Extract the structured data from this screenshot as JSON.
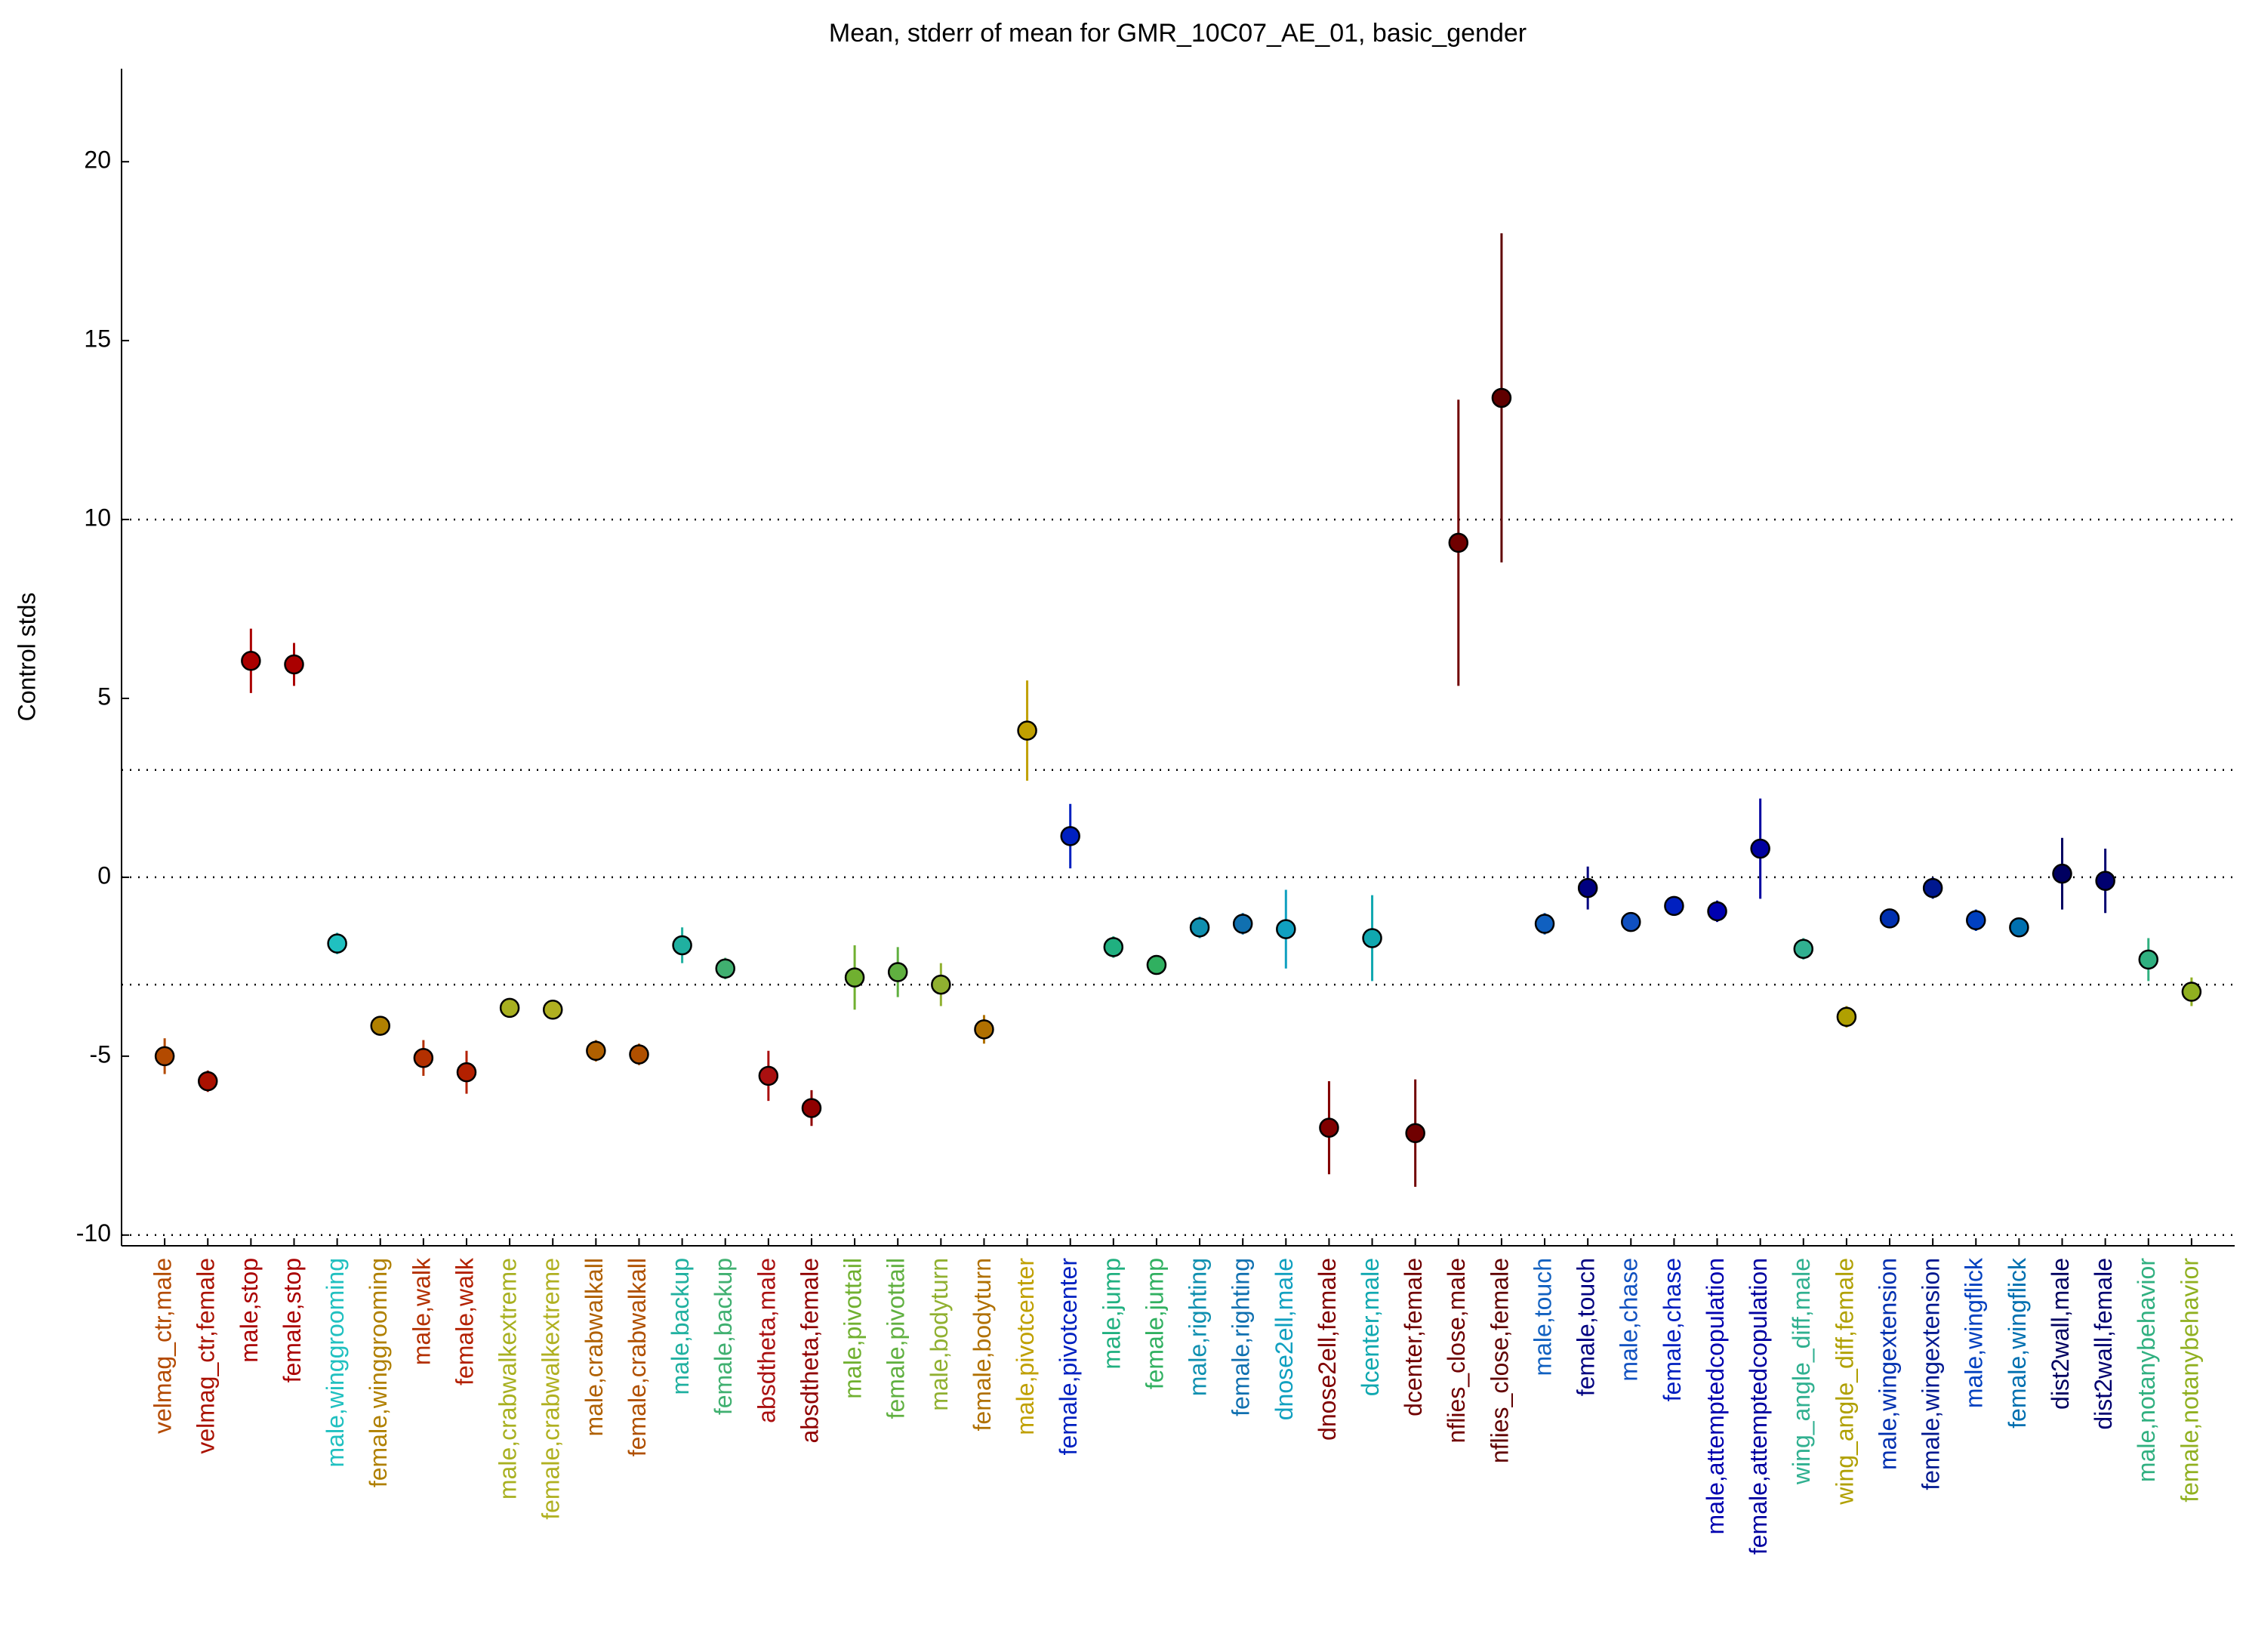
{
  "chart_data": {
    "type": "errorbar",
    "title": "Mean, stderr of mean for GMR_10C07_AE_01, basic_gender",
    "ylabel": "Control stds",
    "categories": [
      "velmag_ctr,male",
      "velmag_ctr,female",
      "male,stop",
      "female,stop",
      "male,winggrooming",
      "female,winggrooming",
      "male,walk",
      "female,walk",
      "male,crabwalkextreme",
      "female,crabwalkextreme",
      "male,crabwalkall",
      "female,crabwalkall",
      "male,backup",
      "female,backup",
      "absdtheta,male",
      "absdtheta,female",
      "male,pivottail",
      "female,pivottail",
      "male,bodyturn",
      "female,bodyturn",
      "male,pivotcenter",
      "female,pivotcenter",
      "male,jump",
      "female,jump",
      "male,righting",
      "female,righting",
      "dnose2ell,male",
      "dnose2ell,female",
      "dcenter,male",
      "dcenter,female",
      "nflies_close,male",
      "nflies_close,female",
      "male,touch",
      "female,touch",
      "male,chase",
      "female,chase",
      "male,attemptedcopulation",
      "female,attemptedcopulation",
      "wing_angle_diff,male",
      "wing_angle_diff,female",
      "male,wingextension",
      "female,wingextension",
      "male,wingflick",
      "female,wingflick",
      "dist2wall,male",
      "dist2wall,female",
      "male,notanybehavior",
      "female,notanybehavior"
    ],
    "values": [
      -5.0,
      -5.7,
      6.05,
      5.95,
      -1.85,
      -4.15,
      -5.05,
      -5.45,
      -3.65,
      -3.7,
      -4.85,
      -4.95,
      -1.9,
      -2.55,
      -5.55,
      -6.45,
      -2.8,
      -2.65,
      -3.0,
      -4.25,
      4.1,
      1.15,
      -1.95,
      -2.45,
      -1.4,
      -1.3,
      -1.45,
      -7.0,
      -1.7,
      -7.15,
      9.35,
      13.4,
      -1.3,
      -0.3,
      -1.25,
      -0.8,
      -0.95,
      0.8,
      -2.0,
      -3.9,
      -1.15,
      -0.3,
      -1.2,
      -1.4,
      0.1,
      -0.1,
      -2.3,
      -3.2
    ],
    "errors": [
      0.5,
      0.3,
      0.9,
      0.6,
      0.3,
      0.2,
      0.5,
      0.6,
      0.2,
      0.2,
      0.3,
      0.3,
      0.5,
      0.3,
      0.7,
      0.5,
      0.9,
      0.7,
      0.6,
      0.4,
      1.4,
      0.9,
      0.3,
      0.15,
      0.3,
      0.3,
      1.1,
      1.3,
      1.2,
      1.5,
      4.0,
      4.6,
      0.3,
      0.6,
      0.2,
      0.15,
      0.3,
      1.4,
      0.3,
      0.3,
      0.2,
      0.3,
      0.3,
      0.2,
      1.0,
      0.9,
      0.6,
      0.4
    ],
    "colors": [
      "#b34a00",
      "#aa1100",
      "#aa0000",
      "#aa0000",
      "#20c0c0",
      "#b08000",
      "#b33000",
      "#b32000",
      "#a8b020",
      "#b0b020",
      "#b06000",
      "#b05000",
      "#20b0a0",
      "#40b070",
      "#aa1010",
      "#900000",
      "#70b030",
      "#60b040",
      "#90b030",
      "#b07000",
      "#c0a000",
      "#0020c0",
      "#20b080",
      "#30b060",
      "#1090b0",
      "#1070b0",
      "#10a0c0",
      "#800000",
      "#10a8b0",
      "#700000",
      "#700000",
      "#600000",
      "#1060c0",
      "#000080",
      "#1050c0",
      "#0020c0",
      "#0000b0",
      "#0000a0",
      "#30b090",
      "#b0a000",
      "#0030b0",
      "#001890",
      "#0040c0",
      "#0070b0",
      "#000060",
      "#000070",
      "#30b080",
      "#90b020"
    ],
    "ylim": [
      -10.3,
      22.6
    ],
    "yticks": [
      -10,
      -5,
      0,
      5,
      10,
      15,
      20
    ],
    "reference_lines": [
      10,
      3,
      0,
      -3,
      -10
    ],
    "grid": false
  }
}
